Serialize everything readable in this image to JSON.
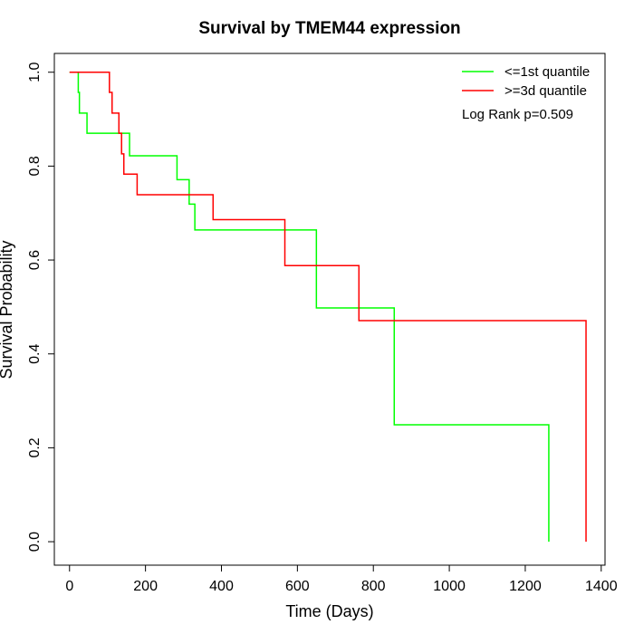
{
  "chart_data": {
    "type": "line",
    "title": "Survival by TMEM44 expression",
    "xlabel": "Time (Days)",
    "ylabel": "Survival Probability",
    "xlim": [
      -40,
      1410
    ],
    "ylim": [
      -0.05,
      1.04
    ],
    "x_ticks": [
      0,
      200,
      400,
      600,
      800,
      1000,
      1200,
      1400
    ],
    "y_ticks": [
      0.0,
      0.2,
      0.4,
      0.6,
      0.8,
      1.0
    ],
    "x_tick_labels": [
      "0",
      "200",
      "400",
      "600",
      "800",
      "1000",
      "1200",
      "1400"
    ],
    "y_tick_labels": [
      "0.0",
      "0.2",
      "0.4",
      "0.6",
      "0.8",
      "1.0"
    ],
    "grid": false,
    "legend_position": "top-right",
    "annotation": "Log Rank p=0.509",
    "series": [
      {
        "name": "<=1st quantile",
        "color": "#00ff00",
        "step": true,
        "times": [
          0,
          23,
          26,
          46,
          158,
          283,
          315,
          330,
          650,
          855,
          1262,
          1262
        ],
        "surv": [
          1.0,
          0.957,
          0.913,
          0.87,
          0.822,
          0.771,
          0.719,
          0.664,
          0.498,
          0.249,
          0.249,
          0.0
        ]
      },
      {
        "name": ">=3d quantile",
        "color": "#ff0000",
        "step": true,
        "times": [
          0,
          105,
          112,
          130,
          137,
          143,
          178,
          378,
          567,
          762,
          1360,
          1360
        ],
        "surv": [
          1.0,
          0.957,
          0.913,
          0.87,
          0.826,
          0.783,
          0.739,
          0.686,
          0.588,
          0.471,
          0.471,
          0.0
        ]
      }
    ]
  }
}
